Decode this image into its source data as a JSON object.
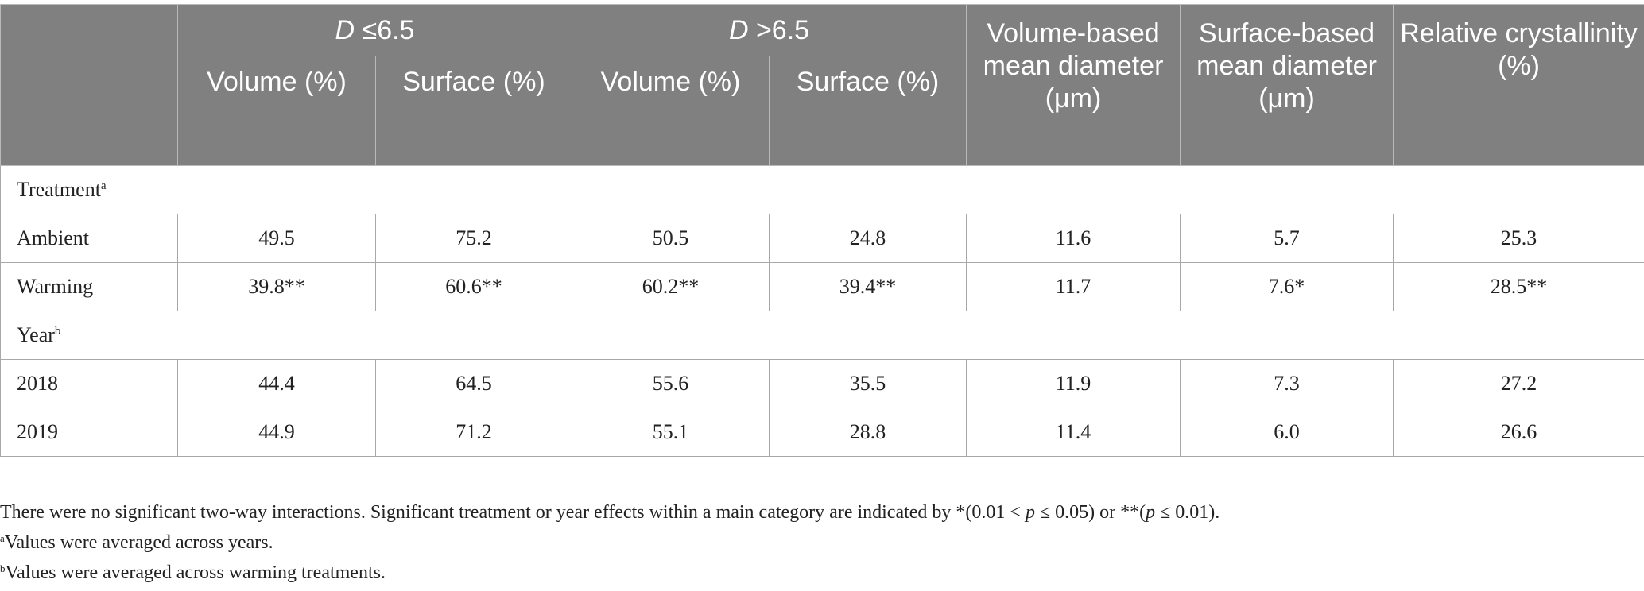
{
  "header": {
    "group1": {
      "prefix": "D",
      "suffix": " ≤6.5"
    },
    "group2": {
      "prefix": "D",
      "suffix": " >6.5"
    },
    "sub_volume": "Volume (%)",
    "sub_surface": "Surface (%)",
    "vol_mean": "Volume-based mean diameter (μm)",
    "surf_mean": "Surface-based mean diameter (μm)",
    "rel_cryst": "Relative crystallinity (%)"
  },
  "sections": {
    "treatment": {
      "label": "Treatment",
      "sup": "a"
    },
    "year": {
      "label": "Year",
      "sup": "b"
    }
  },
  "rows": {
    "ambient": [
      "Ambient",
      "49.5",
      "75.2",
      "50.5",
      "24.8",
      "11.6",
      "5.7",
      "25.3"
    ],
    "warming": [
      "Warming",
      "39.8**",
      "60.6**",
      "60.2**",
      "39.4**",
      "11.7",
      "7.6*",
      "28.5**"
    ],
    "y2018": [
      "2018",
      "44.4",
      "64.5",
      "55.6",
      "35.5",
      "11.9",
      "7.3",
      "27.2"
    ],
    "y2019": [
      "2019",
      "44.9",
      "71.2",
      "55.1",
      "28.8",
      "11.4",
      "6.0",
      "26.6"
    ]
  },
  "notes": {
    "main": {
      "t1": "There were no significant two-way interactions. Significant treatment or year effects within a main category are indicated by *(0.01 < ",
      "p1": "p",
      "t2": " ≤ 0.05) or **(",
      "p2": "p",
      "t3": " ≤ 0.01)."
    },
    "a": {
      "sup": "a",
      "text": "Values were averaged across years."
    },
    "b": {
      "sup": "b",
      "text": "Values were averaged across warming treatments."
    }
  }
}
